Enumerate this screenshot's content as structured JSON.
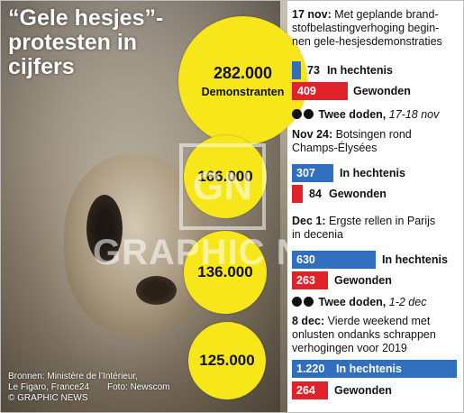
{
  "title_line1": "“Gele hesjes”-",
  "title_line2": "protesten in",
  "title_line3": "cijfers",
  "circles": [
    {
      "value": "282.000",
      "label": "Demonstranten"
    },
    {
      "value": "166.000"
    },
    {
      "value": "136.000"
    },
    {
      "value": "125.000"
    }
  ],
  "events": [
    {
      "date": "17 nov:",
      "text_line1": "Met geplande brand-",
      "text_line2": "stofbelastingverhoging begin-",
      "text_line3": "nen gele-hesjesdemonstraties",
      "arrests": {
        "value": "73",
        "label": "In hechtenis"
      },
      "injured": {
        "value": "409",
        "label": "Gewonden"
      },
      "deaths": {
        "label": "Twee doden,",
        "dates": "17-18 nov"
      }
    },
    {
      "date": "Nov 24:",
      "text_line1": "Botsingen rond",
      "text_line2": "Champs-Élysées",
      "arrests": {
        "value": "307",
        "label": "In hechtenis"
      },
      "injured": {
        "value": "84",
        "label": "Gewonden"
      }
    },
    {
      "date": "Dec 1:",
      "text_line1": "Ergste rellen in Parijs",
      "text_line2": "in decenia",
      "arrests": {
        "value": "630",
        "label": "In hechtenis"
      },
      "injured": {
        "value": "263",
        "label": "Gewonden"
      },
      "deaths": {
        "label": "Twee doden,",
        "dates": "1-2 dec"
      }
    },
    {
      "date": "8 dec:",
      "text_line1": "Vierde weekend met",
      "text_line2": "onlusten ondanks schrappen",
      "text_line3": "verhogingen voor 2019",
      "arrests": {
        "value": "1.220",
        "label": "In hechtenis"
      },
      "injured": {
        "value": "264",
        "label": "Gewonden"
      }
    }
  ],
  "sources_line1": "Bronnen: Ministère de l’Intérieur,",
  "sources_line2": "Le Figaro, France24",
  "photo_credit": "Foto: Newscom",
  "copyright": "© GRAPHIC NEWS",
  "watermark_logo": "GN",
  "watermark_text": "GRAPHIC NEWS",
  "colors": {
    "circle": "#f6e61a",
    "arrests_bar": "#2f6fbd",
    "injured_bar": "#e0232b"
  }
}
